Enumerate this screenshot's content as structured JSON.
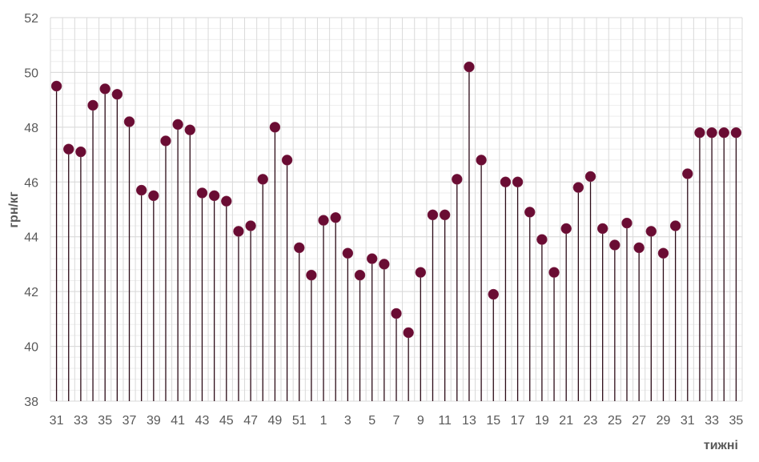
{
  "chart_data": {
    "type": "stem",
    "title": "",
    "xlabel": "тижні",
    "ylabel": "грн/кг",
    "ylim": [
      38,
      52
    ],
    "y_major_step": 2,
    "y_minor_step": 0.4,
    "grid": true,
    "legend": "none",
    "colors": {
      "marker": "#6a0c33",
      "stem": "#2b0a16",
      "grid_major": "#d9d9d9",
      "grid_minor": "#eeeeee",
      "text": "#595959"
    },
    "y_ticks": [
      "38",
      "40",
      "42",
      "44",
      "46",
      "48",
      "50",
      "52"
    ],
    "categories": [
      "31",
      "32",
      "33",
      "34",
      "35",
      "36",
      "37",
      "38",
      "39",
      "40",
      "41",
      "42",
      "43",
      "44",
      "45",
      "46",
      "47",
      "48",
      "49",
      "50",
      "51",
      "52",
      "1",
      "2",
      "3",
      "4",
      "5",
      "6",
      "7",
      "8",
      "9",
      "10",
      "11",
      "12",
      "13",
      "14",
      "15",
      "16",
      "17",
      "18",
      "19",
      "20",
      "21",
      "22",
      "23",
      "24",
      "25",
      "26",
      "27",
      "28",
      "29",
      "30",
      "31",
      "32",
      "33",
      "34",
      "35"
    ],
    "x_tick_labels_shown": "every other category",
    "values": [
      49.5,
      47.2,
      47.1,
      48.8,
      49.4,
      49.2,
      48.2,
      45.7,
      45.5,
      47.5,
      48.1,
      47.9,
      45.6,
      45.5,
      45.3,
      44.2,
      44.4,
      46.1,
      48.0,
      46.8,
      43.6,
      42.6,
      44.6,
      44.7,
      43.4,
      42.6,
      43.2,
      43.0,
      41.2,
      40.5,
      42.7,
      44.8,
      44.8,
      46.1,
      50.2,
      46.8,
      41.9,
      46.0,
      46.0,
      44.9,
      43.9,
      42.7,
      44.3,
      45.8,
      46.2,
      44.3,
      43.7,
      44.5,
      43.6,
      44.2,
      43.4,
      44.4,
      46.3,
      47.8,
      47.8,
      47.8,
      47.8
    ]
  }
}
